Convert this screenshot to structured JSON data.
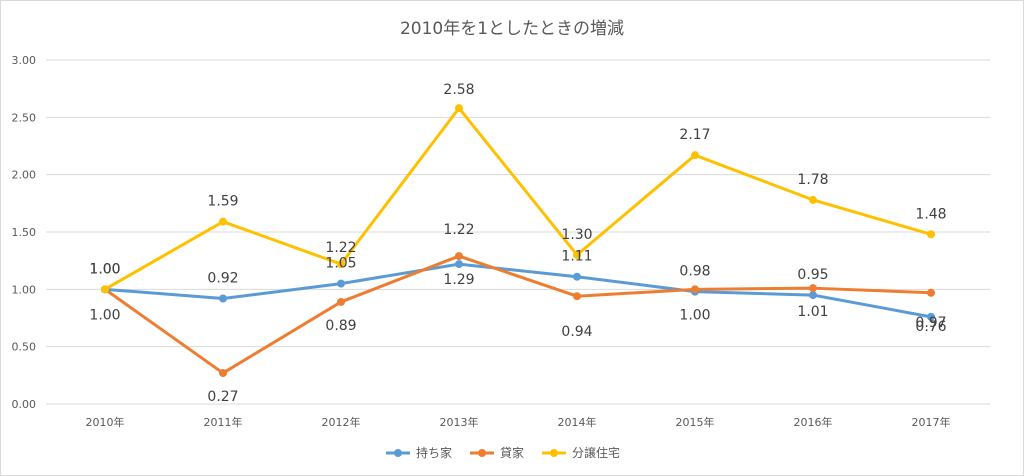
{
  "chart_data": {
    "type": "line",
    "title": "2010年を1としたときの増減",
    "categories": [
      "2010年",
      "2011年",
      "2012年",
      "2013年",
      "2014年",
      "2015年",
      "2016年",
      "2017年"
    ],
    "ylim": [
      0,
      3
    ],
    "yticks": [
      "0.00",
      "0.50",
      "1.00",
      "1.50",
      "2.00",
      "2.50",
      "3.00"
    ],
    "grid": true,
    "legend_position": "bottom",
    "series": [
      {
        "name": "持ち家",
        "color": "#5B9BD5",
        "values": [
          1.0,
          0.92,
          1.05,
          1.22,
          1.11,
          0.98,
          0.95,
          0.76
        ],
        "labels": [
          "1.00",
          "0.92",
          "1.05",
          "1.22",
          "1.11",
          "0.98",
          "0.95",
          "0.76"
        ]
      },
      {
        "name": "貸家",
        "color": "#ED7D31",
        "values": [
          1.0,
          0.27,
          0.89,
          1.29,
          0.94,
          1.0,
          1.01,
          0.97
        ],
        "labels": [
          "1.00",
          "0.27",
          "0.89",
          "1.29",
          "0.94",
          "1.00",
          "1.01",
          "0.97"
        ]
      },
      {
        "name": "分譲住宅",
        "color": "#FFC000",
        "values": [
          1.0,
          1.59,
          1.22,
          2.58,
          1.3,
          2.17,
          1.78,
          1.48
        ],
        "labels": [
          "1.00",
          "1.59",
          "1.22",
          "2.58",
          "1.30",
          "2.17",
          "1.78",
          "1.48"
        ]
      }
    ]
  }
}
